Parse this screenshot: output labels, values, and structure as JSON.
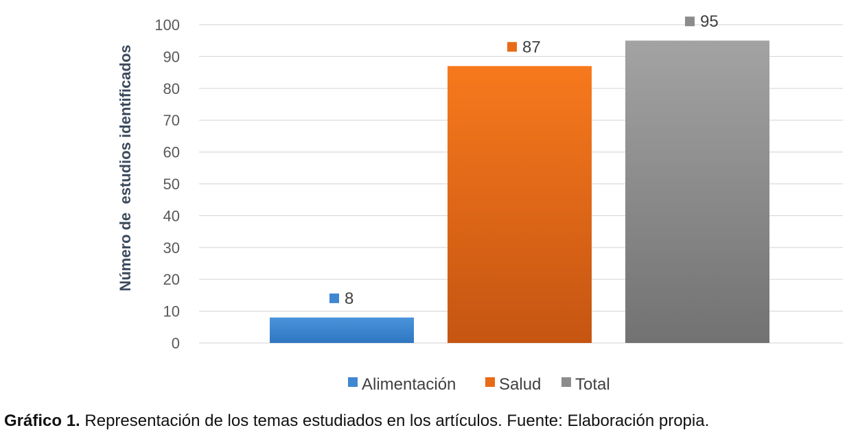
{
  "chart_data": {
    "type": "bar",
    "categories": [
      "Alimentación",
      "Salud",
      "Total"
    ],
    "values": [
      8,
      87,
      95
    ],
    "colors": [
      "#3f87d1",
      "#e96a17",
      "#8c8c8c"
    ],
    "title": "",
    "xlabel": "",
    "ylabel": "Número de  estudios identificados",
    "ylim": [
      0,
      100
    ],
    "yticks": [
      0,
      10,
      20,
      30,
      40,
      50,
      60,
      70,
      80,
      90,
      100
    ],
    "grid": true,
    "legend": {
      "placement": "bottom",
      "entries": [
        "Alimentación",
        "Salud",
        "Total"
      ]
    }
  },
  "caption": {
    "label": "Gráfico 1.",
    "text": " Representación de los temas estudiados en los artículos. Fuente: Elaboración propia."
  }
}
